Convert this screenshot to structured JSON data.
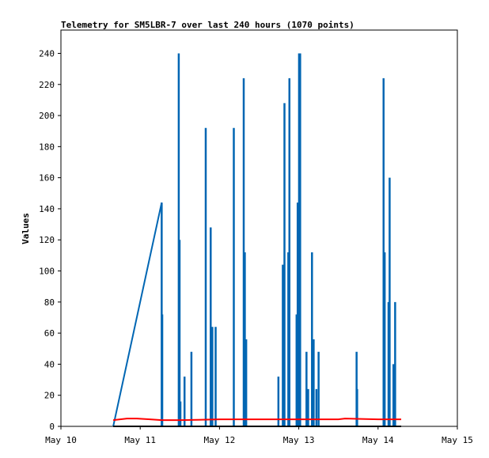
{
  "chart_data": {
    "type": "line",
    "title": "Telemetry for SM5LBR-7 over last 240 hours (1070 points)",
    "xlabel": "",
    "ylabel": "Values",
    "x_axis": "time (days)",
    "xlim": [
      "May 10",
      "May 15"
    ],
    "x_ticks": [
      "May 10",
      "May 11",
      "May 12",
      "May 13",
      "May 14",
      "May 15"
    ],
    "ylim": [
      0,
      255
    ],
    "y_ticks": [
      0,
      20,
      40,
      60,
      80,
      100,
      120,
      140,
      160,
      180,
      200,
      220,
      240
    ],
    "grid": false,
    "legend": "none",
    "series": [
      {
        "color": "#0066b3",
        "style": "spikes",
        "values": [
          [
            "May 10 15:50",
            0
          ],
          [
            "May 11 06:30",
            144
          ],
          [
            "May 11 06:40",
            72
          ],
          [
            "May 11 06:45",
            0
          ],
          [
            "May 11 11:40",
            240
          ],
          [
            "May 11 11:55",
            120
          ],
          [
            "May 11 12:10",
            16
          ],
          [
            "May 11 13:25",
            32
          ],
          [
            "May 11 15:30",
            48
          ],
          [
            "May 11 19:50",
            192
          ],
          [
            "May 11 21:20",
            128
          ],
          [
            "May 11 21:50",
            64
          ],
          [
            "May 11 22:50",
            64
          ],
          [
            "May 12 04:20",
            192
          ],
          [
            "May 12 07:20",
            224
          ],
          [
            "May 12 07:40",
            112
          ],
          [
            "May 12 08:05",
            56
          ],
          [
            "May 12 17:50",
            32
          ],
          [
            "May 12 19:10",
            104
          ],
          [
            "May 12 19:40",
            208
          ],
          [
            "May 12 20:50",
            112
          ],
          [
            "May 12 21:10",
            224
          ],
          [
            "May 12 23:20",
            72
          ],
          [
            "May 12 23:40",
            144
          ],
          [
            "May 13 00:05",
            240
          ],
          [
            "May 13 00:25",
            240
          ],
          [
            "May 13 02:20",
            48
          ],
          [
            "May 13 02:50",
            24
          ],
          [
            "May 13 04:00",
            112
          ],
          [
            "May 13 04:30",
            56
          ],
          [
            "May 13 05:20",
            24
          ],
          [
            "May 13 06:00",
            48
          ],
          [
            "May 13 17:30",
            48
          ],
          [
            "May 13 17:40",
            24
          ],
          [
            "May 14 01:40",
            224
          ],
          [
            "May 14 02:00",
            112
          ],
          [
            "May 14 03:10",
            80
          ],
          [
            "May 14 03:30",
            160
          ],
          [
            "May 14 04:40",
            40
          ],
          [
            "May 14 05:10",
            80
          ]
        ]
      },
      {
        "color": "#ff0000",
        "style": "line",
        "values": [
          [
            "May 10 15:50",
            4
          ],
          [
            "May 10 20:00",
            5
          ],
          [
            "May 10 23:00",
            5
          ],
          [
            "May 11 03:00",
            4.5
          ],
          [
            "May 11 06:30",
            4
          ],
          [
            "May 11 12:00",
            4
          ],
          [
            "May 12 00:00",
            4.5
          ],
          [
            "May 12 12:00",
            4.5
          ],
          [
            "May 13 00:00",
            4.5
          ],
          [
            "May 13 12:00",
            4.5
          ],
          [
            "May 13 14:00",
            5
          ],
          [
            "May 14 00:00",
            4.5
          ],
          [
            "May 14 07:00",
            4.5
          ]
        ]
      },
      {
        "color": "#000000",
        "style": "line",
        "values": [
          [
            "May 10 15:50",
            0
          ],
          [
            "May 14 07:00",
            0
          ]
        ]
      }
    ]
  }
}
